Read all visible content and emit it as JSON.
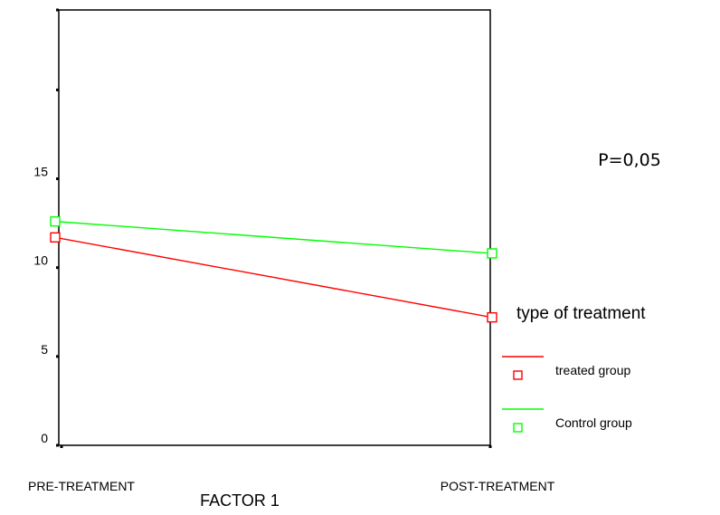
{
  "chart_data": {
    "type": "line",
    "categories": [
      "PRE-TREATMENT",
      "POST-TREATMENT"
    ],
    "xlabel": "FACTOR 1",
    "ylabel": "",
    "ylim": [
      0,
      24.5
    ],
    "yticks": [
      0,
      5,
      10,
      15,
      20,
      24.5
    ],
    "ytick_labels": [
      "0",
      "5",
      "10",
      "15",
      "",
      ""
    ],
    "grid": false,
    "annotation": "P=0,05",
    "legend": {
      "title": "type of treatment",
      "placement": "right"
    },
    "series": [
      {
        "name": "treated group",
        "values": [
          11.7,
          7.2
        ],
        "color": "#ff0000"
      },
      {
        "name": "Control group",
        "values": [
          12.6,
          10.8
        ],
        "color": "#00ff00"
      }
    ]
  }
}
